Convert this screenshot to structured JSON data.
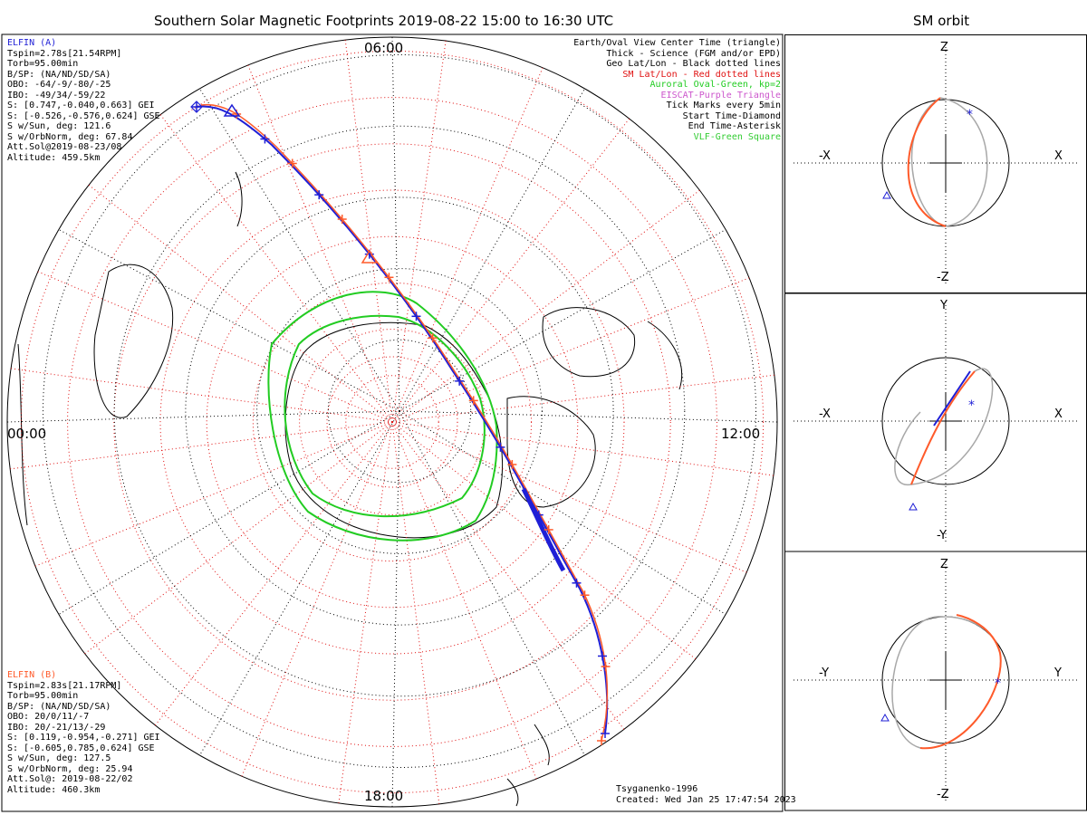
{
  "page": {
    "title": "Southern Solar Magnetic Footprints 2019-08-22 15:00 to 16:30 UTC",
    "orbit_title": "SM orbit"
  },
  "colors": {
    "elfin_a": "#1f1fd6",
    "elfin_b": "#ff5a2a",
    "grid_red": "#e01010",
    "oval": "#22cc22",
    "eiscat": "#cc55cc",
    "vlf": "#33cc33",
    "orbit_gray": "#a8a8a8"
  },
  "elfin_a": {
    "name": "ELFIN (A)",
    "lines": [
      "Tspin=2.78s[21.54RPM]",
      "Torb=95.00min",
      "B/SP: (NA/ND/SD/SA)",
      "OBO: -64/-9/-80/-25",
      "IBO: -49/34/-59/22",
      "S: [0.747,-0.040,0.663] GEI",
      "S: [-0.526,-0.576,0.624] GSE",
      "S w/Sun, deg: 121.6",
      "S w/OrbNorm, deg: 67.84",
      "Att.Sol@2019-08-23/08",
      "Altitude: 459.5km"
    ]
  },
  "elfin_b": {
    "name": "ELFIN (B)",
    "lines": [
      "Tspin=2.83s[21.17RPM]",
      "Torb=95.00min",
      "B/SP: (NA/ND/SD/SA)",
      "OBO: 20/0/11/-7",
      "IBO: 20/-21/13/-29",
      "S: [0.119,-0.954,-0.271] GEI",
      "S: [-0.605,0.785,0.624] GSE",
      "S w/Sun, deg: 127.5",
      "S w/OrbNorm, deg: 25.94",
      "Att.Sol@: 2019-08-22/02",
      "Altitude: 460.3km"
    ]
  },
  "legend": [
    {
      "text": "Earth/Oval View Center Time (triangle)",
      "color": "#000000"
    },
    {
      "text": "Thick - Science (FGM and/or EPD)",
      "color": "#000000"
    },
    {
      "text": "Geo Lat/Lon - Black dotted lines",
      "color": "#000000"
    },
    {
      "text": "SM Lat/Lon - Red dotted lines",
      "color": "#e01010"
    },
    {
      "text": "Auroral Oval-Green, kp=2",
      "color": "#22cc22"
    },
    {
      "text": "EISCAT-Purple Triangle",
      "color": "#cc55cc"
    },
    {
      "text": "Tick Marks every 5min",
      "color": "#000000"
    },
    {
      "text": "Start Time-Diamond",
      "color": "#000000"
    },
    {
      "text": "End Time-Asterisk",
      "color": "#000000"
    },
    {
      "text": "VLF-Green Square",
      "color": "#33cc33"
    }
  ],
  "credit": {
    "model": "Tsyganenko-1996",
    "created": "Created: Wed Jan 25 17:47:54 2023"
  },
  "map_labels": {
    "top": "06:00",
    "left": "00:00",
    "right": "12:00",
    "bottom": "18:00"
  },
  "orbit_panels": [
    {
      "top": "Z",
      "bottom": "-Z",
      "left": "-X",
      "right": "X"
    },
    {
      "top": "Y",
      "bottom": "-Y",
      "left": "-X",
      "right": "X"
    },
    {
      "top": "Z",
      "bottom": "-Z",
      "left": "-Y",
      "right": "Y"
    }
  ],
  "chart_data": {
    "type": "polar-map",
    "projection": "Southern hemisphere SM polar view",
    "mlt_labels": [
      "00:00",
      "06:00",
      "12:00",
      "18:00"
    ],
    "series": [
      {
        "name": "ELFIN (A)",
        "color": "#1f1fd6"
      },
      {
        "name": "ELFIN (B)",
        "color": "#ff5a2a"
      }
    ],
    "auroral_oval_kp": 2
  }
}
